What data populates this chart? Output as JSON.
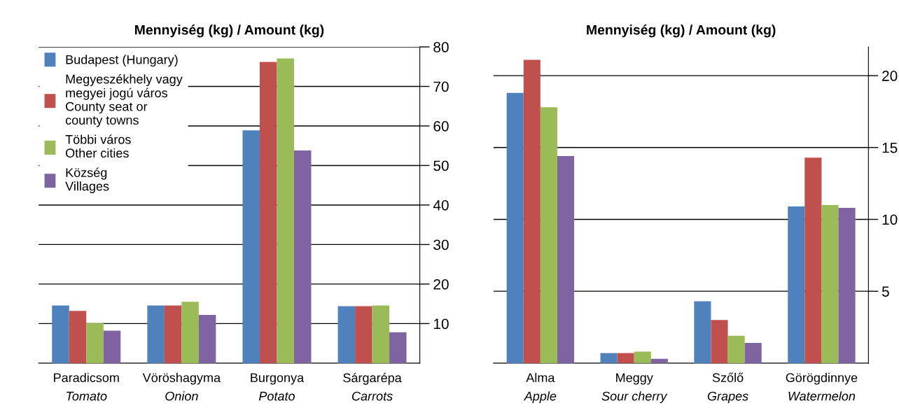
{
  "chart_data": [
    {
      "type": "bar",
      "title": "Mennyiség (kg) / Amount (kg)",
      "categories": [
        "Paradicsom\nTomato",
        "Vöröshagyma\nOnion",
        "Burgonya\nPotato",
        "Sárgarépa\nCarrots"
      ],
      "series": [
        {
          "name": "Budapest (Hungary)",
          "color": "#4f81bd",
          "values": [
            14.6,
            14.6,
            58.9,
            14.4
          ]
        },
        {
          "name": "Megyeszékhely vagy\nmegyei jogú város\nCounty seat or\ncounty towns",
          "color": "#c0504d",
          "values": [
            13.2,
            14.6,
            76.2,
            14.4
          ]
        },
        {
          "name": "Többi város\nOther cities",
          "color": "#9bbb59",
          "values": [
            10.1,
            15.5,
            77.1,
            14.6
          ]
        },
        {
          "name": "Község\nVillages",
          "color": "#8064a2",
          "values": [
            8.2,
            12.2,
            53.8,
            7.8
          ]
        }
      ],
      "ylim": [
        0,
        80
      ],
      "yticks": [
        10,
        20,
        30,
        40,
        50,
        60,
        70,
        80
      ],
      "grid": "y",
      "legend": "top left"
    },
    {
      "type": "bar",
      "title": "Mennyiség (kg) / Amount (kg)",
      "categories": [
        "Alma\nApple",
        "Meggy\nSour cherry",
        "Szőlő\nGrapes",
        "Görögdinnye\nWatermelon"
      ],
      "series": [
        {
          "color": "#4f81bd",
          "values": [
            18.8,
            0.7,
            4.3,
            10.9
          ]
        },
        {
          "color": "#c0504d",
          "values": [
            21.1,
            0.7,
            3.0,
            14.3
          ]
        },
        {
          "color": "#9bbb59",
          "values": [
            17.8,
            0.8,
            1.9,
            11.0
          ]
        },
        {
          "color": "#8064a2",
          "values": [
            14.4,
            0.3,
            1.4,
            10.8
          ]
        }
      ],
      "ylim": [
        0,
        22
      ],
      "yticks": [
        5,
        10,
        15,
        20
      ],
      "grid": "y"
    }
  ]
}
